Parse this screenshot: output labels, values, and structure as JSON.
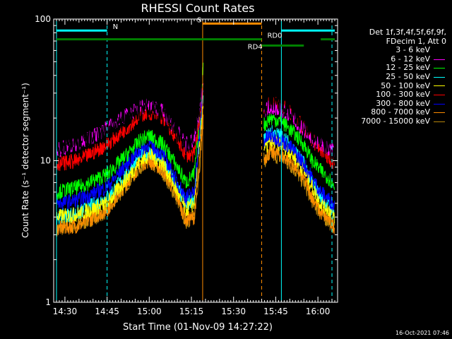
{
  "chart_data": {
    "type": "line",
    "title": "RHESSI Count Rates",
    "xlabel": "Start Time (01-Nov-09 14:27:22)",
    "ylabel": "Count Rate (s⁻¹ detector segment⁻¹)",
    "yscale": "log",
    "ylim": [
      1,
      100
    ],
    "xlim": [
      "14:26",
      "16:07"
    ],
    "xtick_labels": [
      "14:30",
      "14:45",
      "15:00",
      "15:15",
      "15:30",
      "15:45",
      "16:00"
    ],
    "ytick_labels": [
      "1",
      "10",
      "100"
    ],
    "grid": false,
    "legend_position": "right",
    "legend_header": [
      "Det 1f,3f,4f,5f,6f,9f,",
      "FDecim 1, Att 0"
    ],
    "series": [
      {
        "name": "3 - 6 keV",
        "color": "#000000",
        "x": [
          "14:27",
          "14:35",
          "14:45",
          "14:52",
          "14:57",
          "15:00",
          "15:05",
          "15:10",
          "15:13",
          "15:16",
          "15:18",
          "15:19",
          "15:41",
          "15:43",
          "15:47",
          "15:51",
          "15:55",
          "15:58",
          "16:01",
          "16:04",
          "16:06"
        ],
        "y": [
          12.5,
          13,
          16,
          20,
          23,
          24,
          22,
          16,
          13,
          15,
          25,
          40,
          24,
          27,
          25,
          22,
          18,
          15,
          14,
          12,
          11
        ]
      },
      {
        "name": "6 - 12 keV",
        "color": "#ff00ff",
        "x": [
          "14:27",
          "14:35",
          "14:45",
          "14:52",
          "14:57",
          "15:00",
          "15:05",
          "15:10",
          "15:13",
          "15:16",
          "15:18",
          "15:19",
          "15:41",
          "15:43",
          "15:47",
          "15:51",
          "15:55",
          "15:58",
          "16:01",
          "16:04",
          "16:06"
        ],
        "y": [
          12,
          13,
          17,
          21,
          24,
          25,
          22,
          16,
          13,
          14,
          22,
          35,
          23,
          24,
          23,
          20,
          16.5,
          14,
          13,
          12,
          11.5
        ]
      },
      {
        "name": "12 - 25 keV",
        "color": "#00ff00",
        "x": [
          "14:27",
          "14:35",
          "14:45",
          "14:52",
          "14:57",
          "15:00",
          "15:05",
          "15:10",
          "15:13",
          "15:16",
          "15:18",
          "15:19",
          "15:41",
          "15:43",
          "15:47",
          "15:51",
          "15:55",
          "15:58",
          "16:01",
          "16:04",
          "16:06"
        ],
        "y": [
          6,
          6.5,
          8,
          11,
          14,
          15,
          13,
          9,
          7,
          8,
          20,
          45,
          18,
          20,
          19,
          16,
          13,
          10,
          8.5,
          7.5,
          6.5
        ]
      },
      {
        "name": "25 - 50 keV",
        "color": "#00ffff",
        "x": [
          "14:27",
          "14:35",
          "14:45",
          "14:52",
          "14:57",
          "15:00",
          "15:05",
          "15:10",
          "15:13",
          "15:16",
          "15:18",
          "15:19",
          "15:41",
          "15:43",
          "15:47",
          "15:51",
          "15:55",
          "15:58",
          "16:01",
          "16:04",
          "16:06"
        ],
        "y": [
          4,
          4.3,
          5.5,
          8,
          11,
          11.5,
          10,
          6.5,
          4.8,
          5.5,
          15,
          28,
          14,
          16,
          15,
          12.5,
          9.5,
          7,
          5.5,
          4.8,
          4.2
        ]
      },
      {
        "name": "50 - 100 keV",
        "color": "#ffff00",
        "x": [
          "14:27",
          "14:35",
          "14:45",
          "14:52",
          "14:57",
          "15:00",
          "15:05",
          "15:10",
          "15:13",
          "15:16",
          "15:18",
          "15:19",
          "15:41",
          "15:43",
          "15:47",
          "15:51",
          "15:55",
          "15:58",
          "16:01",
          "16:04",
          "16:06"
        ],
        "y": [
          4,
          4.2,
          5,
          7.5,
          10,
          11,
          9.5,
          6,
          4.5,
          5,
          14,
          25,
          12,
          13.5,
          13,
          11,
          8.5,
          6.5,
          5,
          4.5,
          4
        ]
      },
      {
        "name": "100 - 300 keV",
        "color": "#ff0000",
        "x": [
          "14:27",
          "14:35",
          "14:45",
          "14:52",
          "14:57",
          "15:00",
          "15:05",
          "15:10",
          "15:13",
          "15:16",
          "15:18",
          "15:19",
          "15:41",
          "15:43",
          "15:47",
          "15:51",
          "15:55",
          "15:58",
          "16:01",
          "16:04",
          "16:06"
        ],
        "y": [
          9.5,
          10,
          13,
          17,
          21,
          22,
          20,
          14,
          11,
          11,
          20,
          35,
          24,
          26,
          25,
          21,
          17,
          14,
          12,
          10.5,
          9.5
        ]
      },
      {
        "name": "300 - 800 keV",
        "color": "#0000ff",
        "x": [
          "14:27",
          "14:35",
          "14:45",
          "14:52",
          "14:57",
          "15:00",
          "15:05",
          "15:10",
          "15:13",
          "15:16",
          "15:18",
          "15:19",
          "15:41",
          "15:43",
          "15:47",
          "15:51",
          "15:55",
          "15:58",
          "16:01",
          "16:04",
          "16:06"
        ],
        "y": [
          5,
          5.3,
          6.5,
          9.5,
          12,
          13,
          11,
          7,
          5.5,
          6,
          16,
          30,
          14,
          15,
          14,
          12,
          9.5,
          7.5,
          6,
          5.3,
          4.8
        ]
      },
      {
        "name": "800 - 7000 keV",
        "color": "#ff8c00",
        "x": [
          "14:27",
          "14:35",
          "14:45",
          "14:52",
          "14:57",
          "15:00",
          "15:05",
          "15:10",
          "15:13",
          "15:16",
          "15:18",
          "15:19",
          "15:41",
          "15:43",
          "15:47",
          "15:51",
          "15:55",
          "15:58",
          "16:01",
          "16:04",
          "16:06"
        ],
        "y": [
          3.3,
          3.5,
          4.5,
          7,
          9.5,
          10,
          8.5,
          5.5,
          3.8,
          4,
          10,
          20,
          10.5,
          11.5,
          11,
          9.5,
          7.5,
          5.5,
          4.3,
          3.8,
          3.4
        ]
      },
      {
        "name": "7000 - 15000 keV",
        "color": "#b8860b",
        "x": [
          "14:27",
          "14:35",
          "14:45",
          "14:52",
          "14:57",
          "15:00",
          "15:05",
          "15:10",
          "15:13",
          "15:16",
          "15:18",
          "15:19",
          "15:41",
          "15:43",
          "15:47",
          "15:51",
          "15:55",
          "15:58",
          "16:01",
          "16:04",
          "16:06"
        ],
        "y": [
          3.3,
          3.5,
          4.4,
          6.8,
          9.2,
          9.8,
          8.2,
          5.3,
          3.7,
          4,
          9.5,
          19,
          10,
          11,
          10.5,
          9,
          7,
          5.2,
          4.2,
          3.7,
          3.3
        ]
      }
    ],
    "vertical_markers": [
      {
        "x": "14:27",
        "color": "#00ffff",
        "style": "solid"
      },
      {
        "x": "14:45",
        "color": "#00ffff",
        "style": "dashed"
      },
      {
        "x": "15:19",
        "color": "#ff8c00",
        "style": "solid"
      },
      {
        "x": "15:40",
        "color": "#ff8c00",
        "style": "dashed"
      },
      {
        "x": "15:47",
        "color": "#00ffff",
        "style": "solid"
      },
      {
        "x": "16:05",
        "color": "#00ffff",
        "style": "dashed"
      }
    ],
    "interval_bars": [
      {
        "label": "N",
        "color": "#00ffff",
        "y": 83,
        "segments": [
          [
            "14:27",
            "14:45"
          ],
          [
            "15:47",
            "16:06"
          ]
        ],
        "label_at": "14:47"
      },
      {
        "label": "S",
        "color": "#ff8c00",
        "y": 93,
        "segments": [
          [
            "15:19",
            "15:40"
          ]
        ],
        "label_at": "15:17"
      },
      {
        "label": "RD0",
        "color": "#008000",
        "y": 72,
        "segments": [
          [
            "14:27",
            "15:40"
          ],
          [
            "16:01",
            "16:06"
          ]
        ],
        "label_at": "15:42"
      },
      {
        "label": "RD4",
        "color": "#008000",
        "y": 65,
        "segments": [
          [
            "15:40",
            "15:55"
          ]
        ],
        "label_at": "15:35"
      }
    ]
  },
  "timestamp": "16-Oct-2021 07:46"
}
